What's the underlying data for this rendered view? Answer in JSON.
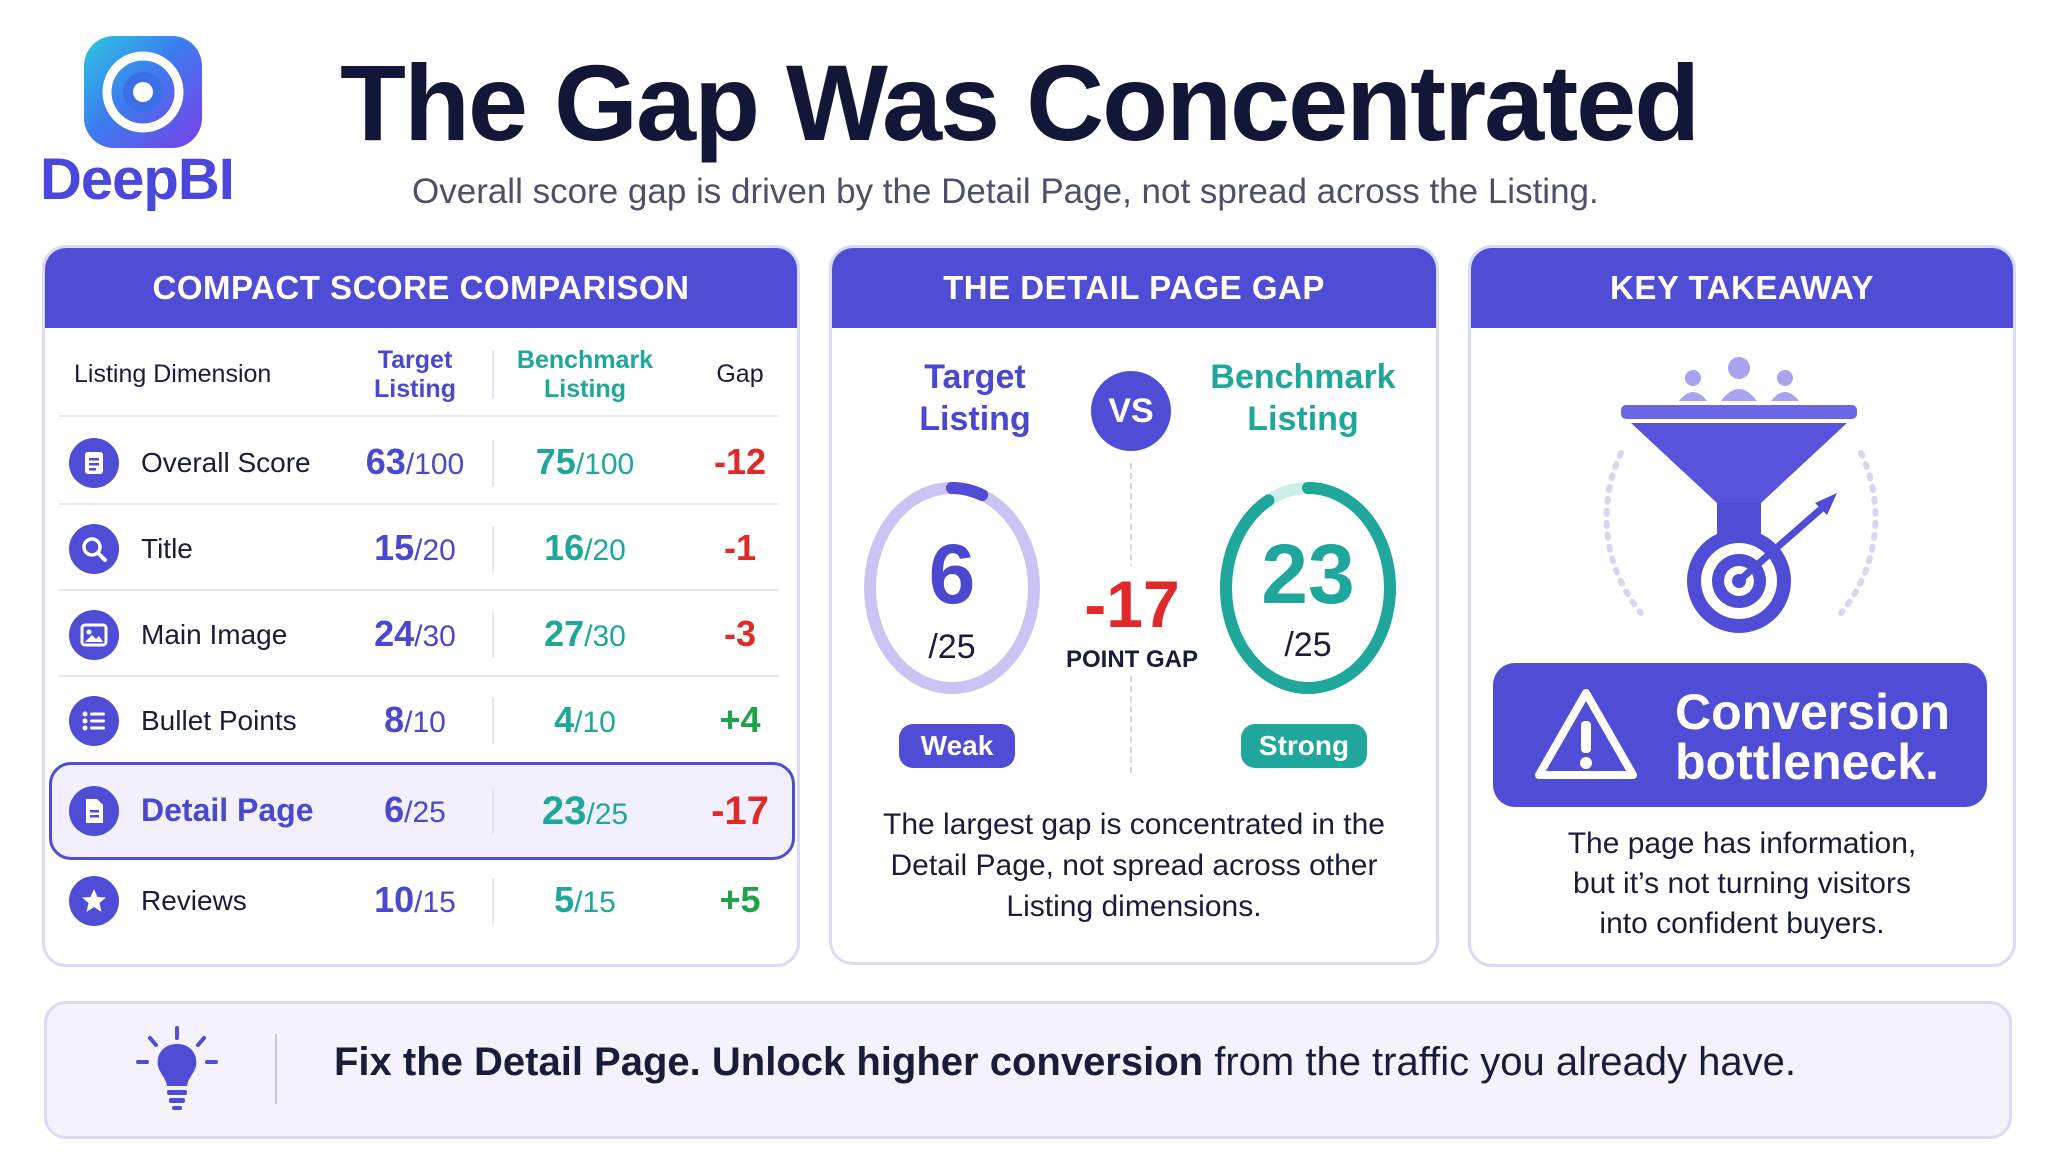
{
  "brand": {
    "name": "DeepBI"
  },
  "header": {
    "title": "The Gap Was Concentrated",
    "subtitle": "Overall score gap is driven by the Detail Page, not spread across the Listing."
  },
  "comparison": {
    "heading": "COMPACT SCORE COMPARISON",
    "col_dimension": "Listing Dimension",
    "col_target_1": "Target",
    "col_target_2": "Listing",
    "col_benchmark_1": "Benchmark",
    "col_benchmark_2": "Listing",
    "col_gap": "Gap",
    "rows": [
      {
        "icon": "document-icon",
        "label": "Overall Score",
        "target": "63",
        "target_den": "/100",
        "bench": "75",
        "bench_den": "/100",
        "gap": "-12"
      },
      {
        "icon": "search-icon",
        "label": "Title",
        "target": "15",
        "target_den": "/20",
        "bench": "16",
        "bench_den": "/20",
        "gap": "-1"
      },
      {
        "icon": "image-icon",
        "label": "Main Image",
        "target": "24",
        "target_den": "/30",
        "bench": "27",
        "bench_den": "/30",
        "gap": "-3"
      },
      {
        "icon": "list-icon",
        "label": "Bullet Points",
        "target": "8",
        "target_den": "/10",
        "bench": "4",
        "bench_den": "/10",
        "gap": "+4"
      },
      {
        "icon": "page-icon",
        "label": "Detail Page",
        "target": "6",
        "target_den": "/25",
        "bench": "23",
        "bench_den": "/25",
        "gap": "-17"
      },
      {
        "icon": "star-icon",
        "label": "Reviews",
        "target": "10",
        "target_den": "/15",
        "bench": "5",
        "bench_den": "/15",
        "gap": "+5"
      }
    ]
  },
  "detail_gap": {
    "heading": "THE DETAIL PAGE GAP",
    "target_label_1": "Target",
    "target_label_2": "Listing",
    "vs": "VS",
    "bench_label_1": "Benchmark",
    "bench_label_2": "Listing",
    "target_score": "6",
    "target_den": "/25",
    "bench_score": "23",
    "bench_den": "/25",
    "target_fraction": 0.24,
    "bench_fraction": 0.92,
    "gap_value": "-17",
    "gap_label": "POINT GAP",
    "target_badge": "Weak",
    "bench_badge": "Strong",
    "body_1": "The largest gap is concentrated in the",
    "body_2": "Detail Page, not spread across other",
    "body_3": "Listing dimensions."
  },
  "takeaway": {
    "heading": "KEY TAKEAWAY",
    "alert_1": "Conversion",
    "alert_2": "bottleneck.",
    "body_1": "The page has information,",
    "body_2": "but it’s not turning visitors",
    "body_3": "into confident buyers."
  },
  "banner": {
    "bold": "Fix the Detail Page. Unlock higher conversion",
    "rest": " from the traffic you already have."
  },
  "colors": {
    "primary": "#4f4cd6",
    "teal": "#1ea79a",
    "negative": "#e02a2a",
    "positive": "#1ea34a",
    "weak_ring": "#bcb6f0"
  }
}
